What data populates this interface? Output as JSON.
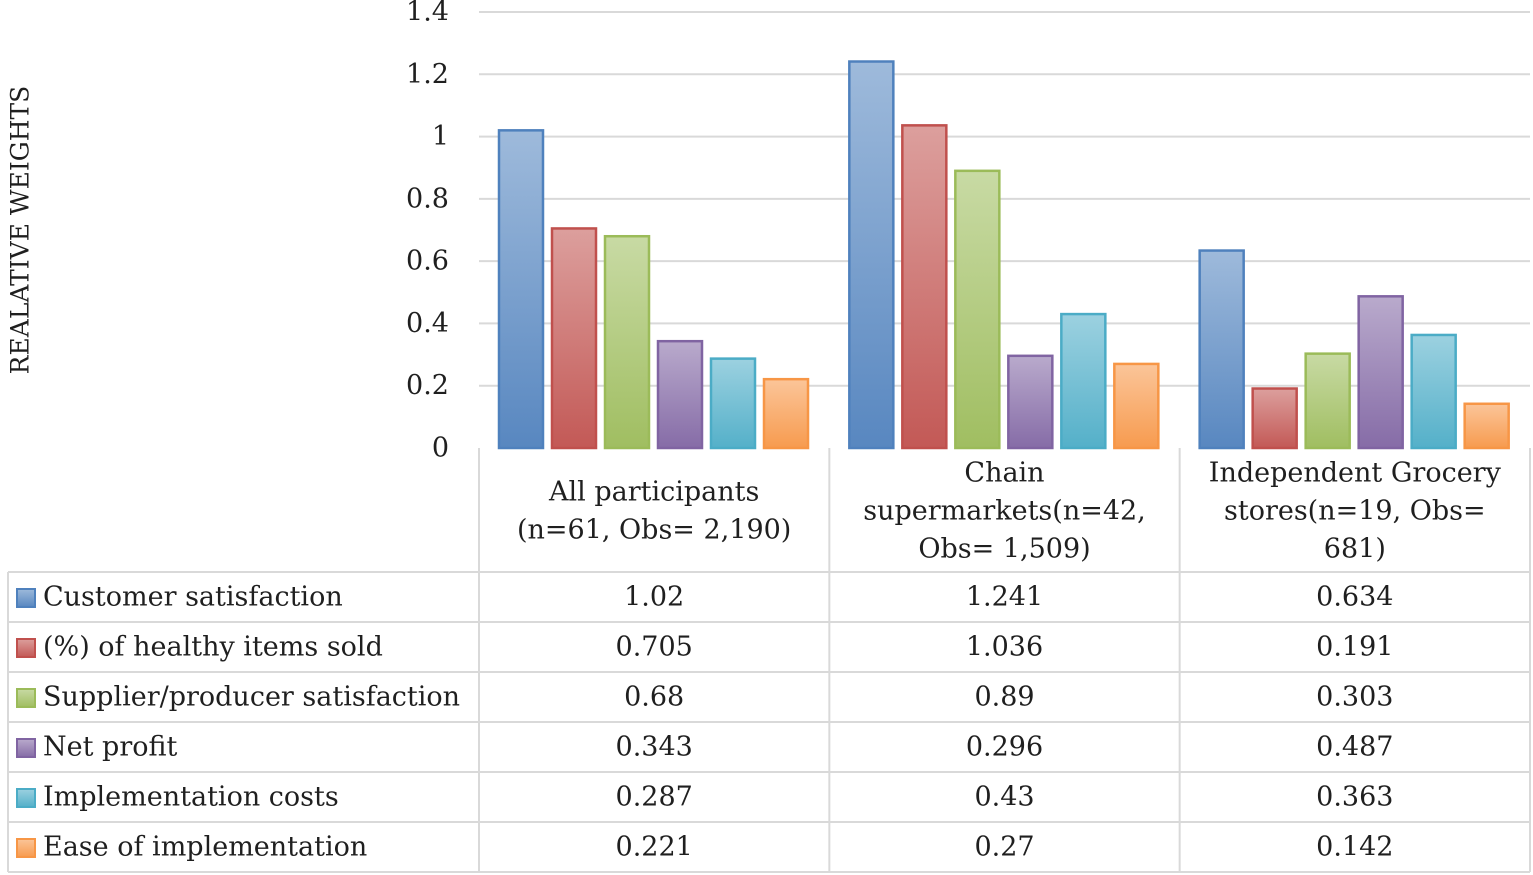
{
  "chart_data": {
    "type": "bar",
    "title": "",
    "xlabel": "",
    "ylabel": "REALATIVE WEIGHTS",
    "ylim": [
      0,
      1.4
    ],
    "yticks": [
      "0",
      "0.2",
      "0.4",
      "0.6",
      "0.8",
      "1",
      "1.2",
      "1.4"
    ],
    "grid": true,
    "legend": "data-table-left",
    "categories": [
      [
        "All participants",
        "(n=61, Obs= 2,190)"
      ],
      [
        "Chain",
        "supermarkets(n=42,",
        "Obs= 1,509)"
      ],
      [
        "Independent Grocery",
        "stores(n=19, Obs=",
        "681)"
      ]
    ],
    "series": [
      {
        "name": "Customer satisfaction",
        "color": "#4f81bd",
        "values": [
          1.02,
          1.241,
          0.634
        ],
        "labels": [
          "1.02",
          "1.241",
          "0.634"
        ]
      },
      {
        "name": "(%) of healthy items sold",
        "color": "#c0504d",
        "values": [
          0.705,
          1.036,
          0.191
        ],
        "labels": [
          "0.705",
          "1.036",
          "0.191"
        ]
      },
      {
        "name": "Supplier/producer satisfaction",
        "color": "#9bbb59",
        "values": [
          0.68,
          0.89,
          0.303
        ],
        "labels": [
          "0.68",
          "0.89",
          "0.303"
        ]
      },
      {
        "name": "Net profit",
        "color": "#8064a2",
        "values": [
          0.343,
          0.296,
          0.487
        ],
        "labels": [
          "0.343",
          "0.296",
          "0.487"
        ]
      },
      {
        "name": "Implementation costs",
        "color": "#4bacc6",
        "values": [
          0.287,
          0.43,
          0.363
        ],
        "labels": [
          "0.287",
          "0.43",
          "0.363"
        ]
      },
      {
        "name": "Ease of implementation",
        "color": "#f79646",
        "values": [
          0.221,
          0.27,
          0.142
        ],
        "labels": [
          "0.221",
          "0.27",
          "0.142"
        ]
      }
    ]
  }
}
